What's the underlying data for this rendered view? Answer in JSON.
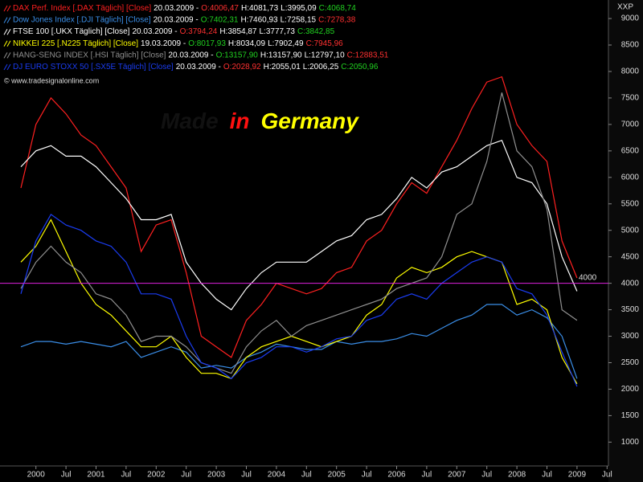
{
  "chart_data": {
    "type": "line",
    "axis_label": "XXP",
    "watermark": "© www.tradesignalonline.com",
    "title_parts": [
      {
        "text": "Made",
        "color": "#111111"
      },
      {
        "text": "in",
        "color": "#ff1010"
      },
      {
        "text": "Germany",
        "color": "#ffff00"
      }
    ],
    "hline": 4000,
    "hline_color": "#e020e0",
    "categories": [
      null,
      "2000",
      null,
      "Jul",
      null,
      "2001",
      null,
      "Jul",
      null,
      "2002",
      null,
      "Jul",
      null,
      "2003",
      null,
      "Jul",
      null,
      "2004",
      null,
      "Jul",
      null,
      "2005",
      null,
      "Jul",
      null,
      "2006",
      null,
      "Jul",
      null,
      "2007",
      null,
      "Jul",
      null,
      "2008",
      null,
      "Jul",
      null,
      "2009",
      null,
      "Jul"
    ],
    "ylim": [
      550,
      9350
    ],
    "yticks": [
      1000,
      1500,
      2000,
      2500,
      3000,
      3500,
      4000,
      4500,
      5000,
      5500,
      6000,
      6500,
      7000,
      7500,
      8000,
      8500,
      9000
    ],
    "grid": false,
    "series": [
      {
        "name": "DAX Perf. Index [.DAX Täglich] [Close]",
        "color": "#ff2020",
        "date": "20.03.2009 -",
        "open": "O:4006,47",
        "open_color": "#ff3030",
        "high": "H:4081,73",
        "low": "L:3995,09",
        "close": "C:4068,74",
        "close_color": "#20d020",
        "values": [
          5800,
          7000,
          7500,
          7200,
          6800,
          6600,
          6200,
          5800,
          4600,
          5100,
          5200,
          4200,
          3000,
          2800,
          2600,
          3300,
          3600,
          4000,
          3900,
          3800,
          3900,
          4200,
          4300,
          4800,
          5000,
          5500,
          5900,
          5700,
          6200,
          6700,
          7300,
          7800,
          7900,
          7000,
          6600,
          6300,
          4800,
          4100,
          null,
          null
        ]
      },
      {
        "name": "Dow Jones Index [.DJI Täglich] [Close]",
        "color": "#3a8ee8",
        "date": "20.03.2009 -",
        "open": "O:7402,31",
        "open_color": "#20d020",
        "high": "H:7460,93",
        "low": "L:7258,15",
        "close": "C:7278,38",
        "close_color": "#ff3030",
        "values": [
          2800,
          2900,
          2900,
          2850,
          2900,
          2850,
          2800,
          2900,
          2600,
          2700,
          2800,
          2700,
          2400,
          2450,
          2400,
          2600,
          2700,
          2850,
          2800,
          2750,
          2750,
          2900,
          2850,
          2900,
          2900,
          2950,
          3050,
          3000,
          3150,
          3300,
          3400,
          3600,
          3600,
          3400,
          3500,
          3350,
          3000,
          2200,
          null,
          null
        ]
      },
      {
        "name": "FTSE 100 [.UKX Täglich] [Close]",
        "color": "#ffffff",
        "date": "20.03.2009 -",
        "open": "O:3794,24",
        "open_color": "#ff3030",
        "high": "H:3854,87",
        "low": "L:3777,73",
        "close": "C:3842,85",
        "close_color": "#20d020",
        "values": [
          6200,
          6500,
          6600,
          6400,
          6400,
          6200,
          5900,
          5600,
          5200,
          5200,
          5300,
          4400,
          4000,
          3700,
          3500,
          3900,
          4200,
          4400,
          4400,
          4400,
          4600,
          4800,
          4900,
          5200,
          5300,
          5600,
          6000,
          5800,
          6100,
          6200,
          6400,
          6600,
          6700,
          6000,
          5900,
          5500,
          4500,
          3850,
          null,
          null
        ]
      },
      {
        "name": "NIKKEI 225 [.N225 Täglich] [Close]",
        "color": "#ffff00",
        "date": "19.03.2009 -",
        "open": "O:8017,93",
        "open_color": "#20d020",
        "high": "H:8034,09",
        "low": "L:7902,49",
        "close": "C:7945,96",
        "close_color": "#ff3030",
        "values": [
          4400,
          4700,
          5200,
          4600,
          4000,
          3600,
          3400,
          3100,
          2800,
          2800,
          3000,
          2600,
          2300,
          2300,
          2200,
          2600,
          2800,
          2900,
          3000,
          2900,
          2800,
          2900,
          3000,
          3400,
          3600,
          4100,
          4300,
          4200,
          4300,
          4500,
          4600,
          4500,
          4400,
          3600,
          3700,
          3500,
          2600,
          2100,
          null,
          null
        ]
      },
      {
        "name": "HANG-SENG INDEX [.HSI Täglich] [Close]",
        "color": "#909090",
        "date": "20.03.2009 -",
        "open": "O:13157,90",
        "open_color": "#20d020",
        "high": "H:13157,90",
        "low": "L:12797,10",
        "close": "C:12883,51",
        "close_color": "#ff3030",
        "values": [
          3900,
          4400,
          4700,
          4400,
          4200,
          3800,
          3700,
          3400,
          2900,
          3000,
          3000,
          2800,
          2500,
          2400,
          2300,
          2800,
          3100,
          3300,
          3000,
          3200,
          3300,
          3400,
          3500,
          3600,
          3700,
          3900,
          4000,
          4100,
          4500,
          5300,
          5500,
          6300,
          7600,
          6500,
          6200,
          5400,
          3500,
          3300,
          null,
          null
        ]
      },
      {
        "name": "DJ EURO STOXX 50 [.SX5E Täglich] [Close]",
        "color": "#1a3cf0",
        "date": "20.03.2009 -",
        "open": "O:2028,92",
        "open_color": "#ff3030",
        "high": "H:2055,01",
        "low": "L:2006,25",
        "close": "C:2050,96",
        "close_color": "#20d020",
        "values": [
          3800,
          4800,
          5300,
          5100,
          5000,
          4800,
          4700,
          4400,
          3800,
          3800,
          3700,
          3000,
          2500,
          2400,
          2200,
          2500,
          2600,
          2800,
          2800,
          2700,
          2800,
          2950,
          3000,
          3300,
          3400,
          3700,
          3800,
          3700,
          4000,
          4200,
          4400,
          4500,
          4400,
          3900,
          3800,
          3400,
          2700,
          2050,
          null,
          null
        ]
      }
    ]
  }
}
